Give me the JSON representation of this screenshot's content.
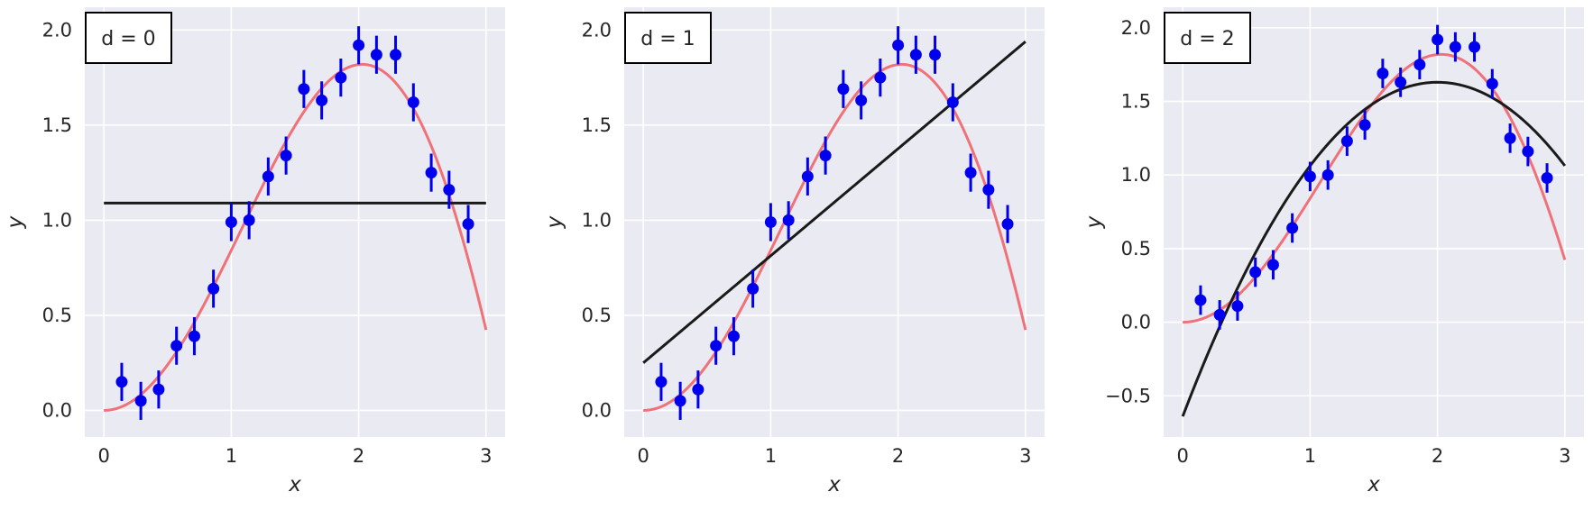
{
  "figure": {
    "background": "#ffffff"
  },
  "style": {
    "plot_background": "#eaeaf2",
    "grid_color": "#ffffff",
    "true_curve_color": "#f07178",
    "fit_color": "#1a1a1a",
    "point_color": "#0000ee"
  },
  "chart_data": [
    {
      "type": "scatter",
      "legend_text": "d = 0",
      "legend_position": "top-left",
      "xlabel": "x",
      "ylabel": "y",
      "xlim": [
        -0.15,
        3.15
      ],
      "ylim": [
        -0.14,
        2.12
      ],
      "xticks": [
        0,
        1,
        2,
        3
      ],
      "yticks": [
        0.0,
        0.5,
        1.0,
        1.5,
        2.0
      ],
      "ytick_labels": [
        "0.0",
        "0.5",
        "1.0",
        "1.5",
        "2.0"
      ],
      "grid": true,
      "points": {
        "x": [
          0.14,
          0.29,
          0.43,
          0.57,
          0.71,
          0.86,
          1.0,
          1.14,
          1.29,
          1.43,
          1.57,
          1.71,
          1.86,
          2.0,
          2.14,
          2.29,
          2.43,
          2.57,
          2.71,
          2.86
        ],
        "y": [
          0.15,
          0.05,
          0.11,
          0.34,
          0.39,
          0.64,
          0.99,
          1.0,
          1.23,
          1.34,
          1.69,
          1.63,
          1.75,
          1.92,
          1.87,
          1.87,
          1.62,
          1.25,
          1.16,
          0.98
        ],
        "error": 0.1
      },
      "true_curve": {
        "formula": "x*sin(x)",
        "x_range": [
          0,
          3
        ]
      },
      "fit": {
        "degree": 0,
        "coefficients": [
          1.09
        ],
        "x_range": [
          0,
          3
        ]
      }
    },
    {
      "type": "scatter",
      "legend_text": "d = 1",
      "legend_position": "top-left",
      "xlabel": "x",
      "ylabel": "y",
      "xlim": [
        -0.15,
        3.15
      ],
      "ylim": [
        -0.14,
        2.12
      ],
      "xticks": [
        0,
        1,
        2,
        3
      ],
      "yticks": [
        0.0,
        0.5,
        1.0,
        1.5,
        2.0
      ],
      "ytick_labels": [
        "0.0",
        "0.5",
        "1.0",
        "1.5",
        "2.0"
      ],
      "grid": true,
      "points": {
        "x": [
          0.14,
          0.29,
          0.43,
          0.57,
          0.71,
          0.86,
          1.0,
          1.14,
          1.29,
          1.43,
          1.57,
          1.71,
          1.86,
          2.0,
          2.14,
          2.29,
          2.43,
          2.57,
          2.71,
          2.86
        ],
        "y": [
          0.15,
          0.05,
          0.11,
          0.34,
          0.39,
          0.64,
          0.99,
          1.0,
          1.23,
          1.34,
          1.69,
          1.63,
          1.75,
          1.92,
          1.87,
          1.87,
          1.62,
          1.25,
          1.16,
          0.98
        ],
        "error": 0.1
      },
      "true_curve": {
        "formula": "x*sin(x)",
        "x_range": [
          0,
          3
        ]
      },
      "fit": {
        "degree": 1,
        "coefficients": [
          0.25,
          0.563
        ],
        "x_range": [
          0,
          3
        ]
      }
    },
    {
      "type": "scatter",
      "legend_text": "d = 2",
      "legend_position": "top-left",
      "xlabel": "x",
      "ylabel": "y",
      "xlim": [
        -0.15,
        3.15
      ],
      "ylim": [
        -0.78,
        2.14
      ],
      "xticks": [
        0,
        1,
        2,
        3
      ],
      "yticks": [
        -0.5,
        0.0,
        0.5,
        1.0,
        1.5,
        2.0
      ],
      "ytick_labels": [
        "−0.5",
        "0.0",
        "0.5",
        "1.0",
        "1.5",
        "2.0"
      ],
      "grid": true,
      "points": {
        "x": [
          0.14,
          0.29,
          0.43,
          0.57,
          0.71,
          0.86,
          1.0,
          1.14,
          1.29,
          1.43,
          1.57,
          1.71,
          1.86,
          2.0,
          2.14,
          2.29,
          2.43,
          2.57,
          2.71,
          2.86
        ],
        "y": [
          0.15,
          0.05,
          0.11,
          0.34,
          0.39,
          0.64,
          0.99,
          1.0,
          1.23,
          1.34,
          1.69,
          1.63,
          1.75,
          1.92,
          1.87,
          1.87,
          1.62,
          1.25,
          1.16,
          0.98
        ],
        "error": 0.1
      },
      "true_curve": {
        "formula": "x*sin(x)",
        "x_range": [
          0,
          3
        ]
      },
      "fit": {
        "degree": 2,
        "coefficients": [
          -0.64,
          2.27,
          -0.5675
        ],
        "x_range": [
          0,
          3
        ]
      }
    }
  ]
}
